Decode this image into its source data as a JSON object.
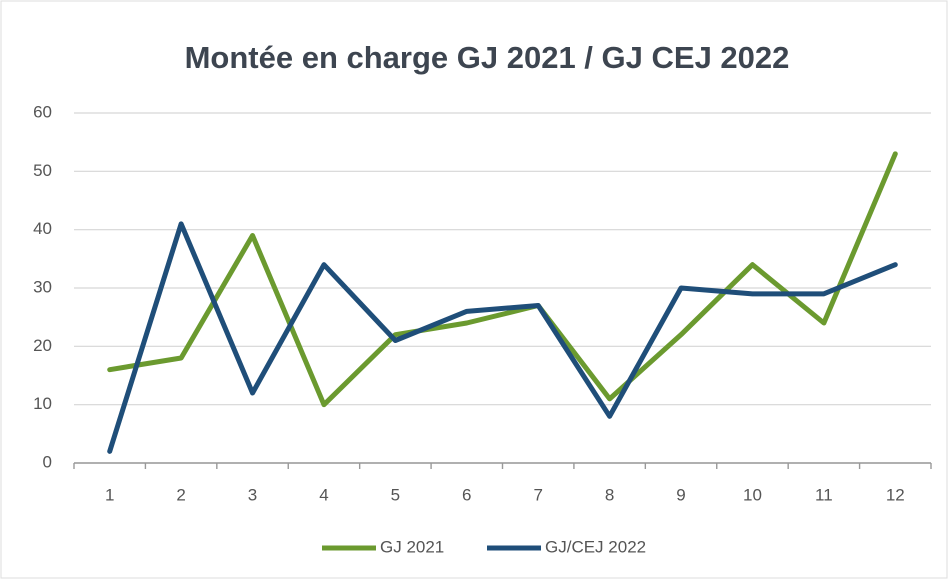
{
  "chart_data": {
    "type": "line",
    "title": "Montée en charge GJ 2021 / GJ CEJ 2022",
    "categories": [
      "1",
      "2",
      "3",
      "4",
      "5",
      "6",
      "7",
      "8",
      "9",
      "10",
      "11",
      "12"
    ],
    "series": [
      {
        "name": "GJ 2021",
        "color": "#6b9a2f",
        "values": [
          16,
          18,
          39,
          10,
          22,
          24,
          27,
          11,
          22,
          34,
          24,
          53
        ]
      },
      {
        "name": "GJ/CEJ 2022",
        "color": "#1f4e79",
        "values": [
          2,
          41,
          12,
          34,
          21,
          26,
          27,
          8,
          30,
          29,
          29,
          34
        ]
      }
    ],
    "ylim": [
      0,
      60
    ],
    "yticks": [
      0,
      10,
      20,
      30,
      40,
      50,
      60
    ],
    "grid": true,
    "legend": "bottom"
  }
}
